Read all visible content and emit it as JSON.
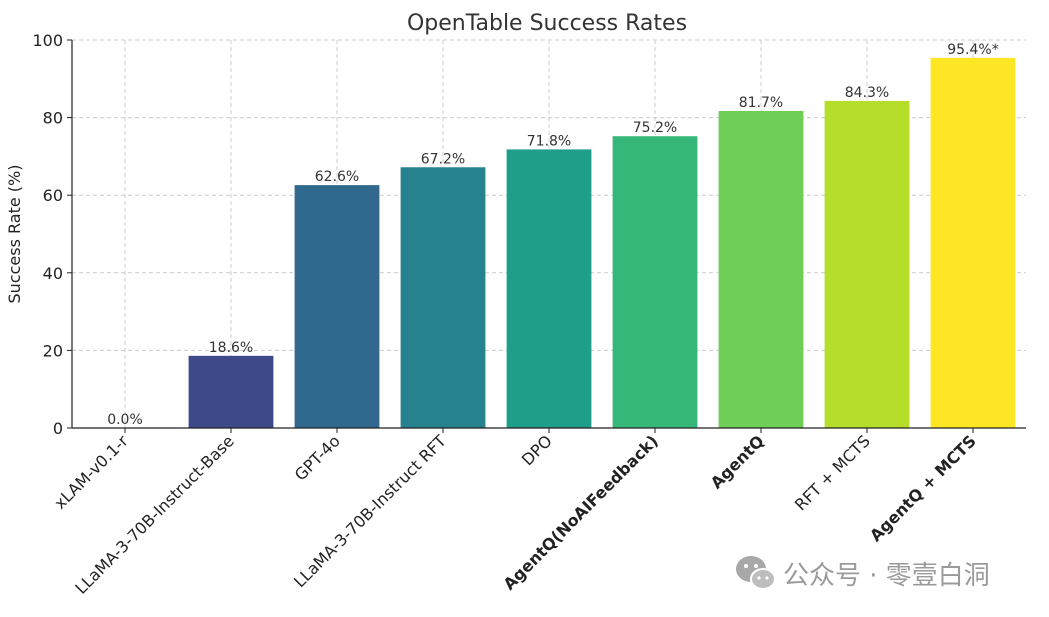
{
  "chart_data": {
    "type": "bar",
    "title": "OpenTable Success Rates",
    "xlabel": "",
    "ylabel": "Success Rate (%)",
    "ylim": [
      0,
      100
    ],
    "yticks": [
      0,
      20,
      40,
      60,
      80,
      100
    ],
    "grid": true,
    "categories": [
      "xLAM-v0.1-r",
      "LLaMA-3-70B-Instruct-Base",
      "GPT-4o",
      "LLaMA-3-70B-Instruct RFT",
      "DPO",
      "AgentQ(NoAIFeedback)",
      "AgentQ",
      "RFT + MCTS",
      "AgentQ + MCTS"
    ],
    "values": [
      0.0,
      18.6,
      62.6,
      67.2,
      71.8,
      75.2,
      81.7,
      84.3,
      95.4
    ],
    "data_labels": [
      "0.0%",
      "18.6%",
      "62.6%",
      "67.2%",
      "71.8%",
      "75.2%",
      "81.7%",
      "84.3%",
      "95.4%*"
    ],
    "bold_categories": [
      "AgentQ(NoAIFeedback)",
      "AgentQ",
      "AgentQ + MCTS"
    ],
    "colors": [
      "#440154",
      "#482878",
      "#3e4989",
      "#31688e",
      "#26828e",
      "#1f9e89",
      "#35b779",
      "#6ece58",
      "#b5de2b",
      "#fde725"
    ]
  },
  "watermark": {
    "icon": "wechat-icon",
    "text": "公众号 · 零壹白洞"
  }
}
